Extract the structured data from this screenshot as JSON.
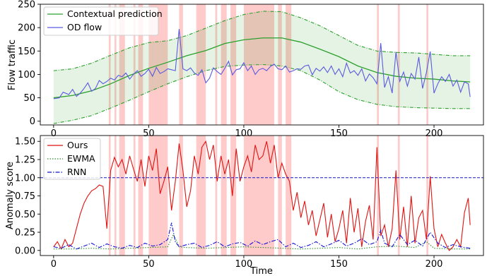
{
  "chart_data": [
    {
      "id": "top",
      "type": "line",
      "xlabel": "",
      "ylabel": "Flow traffic",
      "xlim": [
        -7,
        226
      ],
      "ylim": [
        -8,
        250
      ],
      "xticks": [
        "0",
        "50",
        "100",
        "150",
        "200"
      ],
      "yticks": [
        "0",
        "50",
        "100",
        "150",
        "200",
        "250"
      ],
      "grid": false,
      "legend_position": "top-left",
      "anomaly_bands": [
        [
          29,
          30
        ],
        [
          32,
          33
        ],
        [
          34.5,
          37.5
        ],
        [
          42,
          43
        ],
        [
          44.5,
          47
        ],
        [
          50,
          60
        ],
        [
          66,
          68
        ],
        [
          75,
          80
        ],
        [
          85,
          86
        ],
        [
          88,
          91
        ],
        [
          93,
          96
        ],
        [
          100,
          116
        ],
        [
          118,
          120
        ],
        [
          122,
          125
        ],
        [
          170,
          171
        ],
        [
          181,
          182
        ],
        [
          196,
          197
        ]
      ],
      "series": [
        {
          "name": "Contextual prediction",
          "color": "#2ca02c",
          "style": "band",
          "x": [
            0,
            10,
            20,
            30,
            40,
            50,
            60,
            70,
            80,
            90,
            100,
            110,
            120,
            130,
            140,
            150,
            160,
            170,
            180,
            190,
            200,
            210,
            219
          ],
          "upper": [
            108,
            112,
            124,
            141,
            157,
            168,
            172,
            183,
            199,
            215,
            228,
            235,
            234,
            221,
            204,
            183,
            162,
            150,
            147,
            146,
            143,
            140,
            140
          ],
          "center": [
            50,
            55,
            65,
            80,
            98,
            113,
            126,
            140,
            151,
            166,
            174,
            178,
            178,
            169,
            154,
            138,
            118,
            104,
            96,
            92,
            90,
            86,
            84
          ],
          "lower": [
            -5,
            2,
            12,
            28,
            45,
            63,
            80,
            95,
            108,
            117,
            120,
            121,
            118,
            108,
            88,
            63,
            46,
            36,
            31,
            29,
            28,
            27,
            27
          ]
        },
        {
          "name": "OD flow",
          "color": "#5a5ae0",
          "style": "line",
          "x": [
            0,
            3,
            5,
            8,
            10,
            12,
            14,
            16,
            18,
            20,
            22,
            24,
            26,
            28,
            30,
            32,
            34,
            36,
            38,
            40,
            42,
            44,
            46,
            48,
            50,
            52,
            54,
            56,
            58,
            60,
            62,
            64,
            66,
            68,
            70,
            72,
            74,
            76,
            78,
            80,
            82,
            84,
            86,
            88,
            90,
            92,
            94,
            96,
            98,
            100,
            102,
            104,
            106,
            108,
            110,
            112,
            114,
            116,
            118,
            120,
            122,
            124,
            126,
            128,
            130,
            132,
            134,
            136,
            138,
            140,
            142,
            144,
            146,
            148,
            150,
            152,
            154,
            156,
            158,
            160,
            162,
            164,
            166,
            168,
            170,
            172,
            174,
            176,
            178,
            180,
            182,
            184,
            186,
            188,
            190,
            192,
            194,
            196,
            198,
            200,
            202,
            204,
            206,
            208,
            210,
            212,
            214,
            216,
            218,
            219
          ],
          "values": [
            48,
            50,
            62,
            57,
            68,
            53,
            60,
            70,
            82,
            64,
            70,
            87,
            80,
            85,
            92,
            88,
            98,
            95,
            103,
            90,
            100,
            108,
            96,
            102,
            111,
            96,
            115,
            102,
            106,
            112,
            110,
            108,
            197,
            112,
            108,
            114,
            103,
            98,
            110,
            82,
            92,
            114,
            106,
            100,
            113,
            128,
            99,
            110,
            112,
            125,
            108,
            118,
            100,
            110,
            113,
            108,
            117,
            122,
            112,
            110,
            118,
            105,
            108,
            112,
            111,
            118,
            120,
            99,
            113,
            107,
            116,
            104,
            118,
            100,
            112,
            95,
            124,
            103,
            108,
            98,
            112,
            86,
            101,
            93,
            80,
            167,
            72,
            95,
            60,
            148,
            85,
            105,
            75,
            102,
            90,
            137,
            70,
            104,
            149,
            60,
            80,
            95,
            85,
            100,
            75,
            88,
            62,
            84,
            80,
            52
          ]
        }
      ]
    },
    {
      "id": "bottom",
      "type": "line",
      "xlabel": "Time",
      "ylabel": "Anomaly score",
      "xlim": [
        -7,
        226
      ],
      "ylim": [
        -0.07,
        1.58
      ],
      "xticks": [
        "0",
        "50",
        "100",
        "150",
        "200"
      ],
      "yticks": [
        "0.00",
        "0.25",
        "0.50",
        "0.75",
        "1.00",
        "1.25",
        "1.50"
      ],
      "threshold": 1.0,
      "grid": false,
      "legend_position": "top-left",
      "series": [
        {
          "name": "Ours",
          "color": "#e0120f",
          "style": "solid",
          "x": [
            0,
            2,
            4,
            6,
            8,
            10,
            12,
            14,
            16,
            18,
            20,
            22,
            24,
            26,
            28,
            30,
            32,
            34,
            36,
            38,
            40,
            42,
            44,
            46,
            48,
            50,
            52,
            54,
            56,
            58,
            60,
            62,
            64,
            66,
            68,
            70,
            72,
            74,
            76,
            78,
            80,
            82,
            84,
            86,
            88,
            90,
            92,
            94,
            96,
            98,
            100,
            102,
            104,
            106,
            108,
            110,
            112,
            114,
            116,
            118,
            120,
            122,
            124,
            126,
            128,
            130,
            132,
            134,
            136,
            138,
            140,
            142,
            144,
            146,
            148,
            150,
            152,
            154,
            156,
            158,
            160,
            162,
            164,
            166,
            168,
            170,
            172,
            174,
            176,
            178,
            180,
            182,
            184,
            186,
            188,
            190,
            192,
            194,
            196,
            198,
            200,
            202,
            204,
            206,
            208,
            210,
            212,
            214,
            216,
            218,
            219
          ],
          "values": [
            0.05,
            0.12,
            0.02,
            0.15,
            0.05,
            0.1,
            0.3,
            0.5,
            0.65,
            0.75,
            0.82,
            0.85,
            0.9,
            0.88,
            0.3,
            1.1,
            1.28,
            1.15,
            1.25,
            1.05,
            1.3,
            1.12,
            0.95,
            1.25,
            0.88,
            1.3,
            1.1,
            1.4,
            0.78,
            0.95,
            1.15,
            0.55,
            0.95,
            1.47,
            1.1,
            0.6,
            0.82,
            1.3,
            1.05,
            1.42,
            1.5,
            1.25,
            1.45,
            0.95,
            1.3,
            1.05,
            1.25,
            0.75,
            1.4,
            0.95,
            1.15,
            1.3,
            1.08,
            1.45,
            1.25,
            1.3,
            1.5,
            1.2,
            1.45,
            1.0,
            1.2,
            1.05,
            0.95,
            0.55,
            0.8,
            0.45,
            0.68,
            0.35,
            0.55,
            0.2,
            0.42,
            0.65,
            0.18,
            0.5,
            0.12,
            0.3,
            0.55,
            0.1,
            0.72,
            0.25,
            0.58,
            0.05,
            0.4,
            0.62,
            0.15,
            1.42,
            0.2,
            0.35,
            0.05,
            0.3,
            1.1,
            0.15,
            0.6,
            0.05,
            0.75,
            0.1,
            0.45,
            0.55,
            0.15,
            1.02,
            0.3,
            0.05,
            0.22,
            0.1,
            0.0,
            0.05,
            0.15,
            0.05,
            0.52,
            0.72,
            0.35
          ]
        },
        {
          "name": "EWMA",
          "color": "#2e8b2e",
          "style": "dotted",
          "x": [
            0,
            10,
            20,
            30,
            40,
            50,
            60,
            63,
            66,
            70,
            80,
            90,
            100,
            110,
            120,
            130,
            140,
            150,
            160,
            170,
            180,
            190,
            196,
            200,
            210,
            219
          ],
          "values": [
            0.02,
            0.02,
            0.03,
            0.02,
            0.03,
            0.04,
            0.05,
            0.22,
            0.05,
            0.04,
            0.03,
            0.04,
            0.05,
            0.04,
            0.03,
            0.02,
            0.03,
            0.04,
            0.02,
            0.05,
            0.06,
            0.04,
            0.12,
            0.03,
            0.02,
            0.02
          ]
        },
        {
          "name": "RNN",
          "color": "#1515d0",
          "style": "dashdot",
          "x": [
            0,
            4,
            8,
            12,
            16,
            20,
            24,
            28,
            32,
            36,
            40,
            44,
            48,
            52,
            56,
            60,
            62,
            64,
            66,
            70,
            74,
            78,
            82,
            86,
            90,
            94,
            98,
            102,
            106,
            110,
            114,
            118,
            122,
            126,
            130,
            134,
            138,
            142,
            146,
            150,
            154,
            158,
            162,
            166,
            170,
            172,
            174,
            178,
            182,
            186,
            190,
            194,
            198,
            202,
            206,
            210,
            214,
            219
          ],
          "values": [
            0.05,
            0.03,
            0.08,
            0.02,
            0.06,
            0.1,
            0.04,
            0.09,
            0.05,
            0.03,
            0.07,
            0.04,
            0.1,
            0.06,
            0.08,
            0.15,
            0.38,
            0.12,
            0.05,
            0.08,
            0.1,
            0.04,
            0.07,
            0.12,
            0.05,
            0.09,
            0.11,
            0.06,
            0.13,
            0.08,
            0.12,
            0.15,
            0.05,
            0.1,
            0.04,
            0.07,
            0.12,
            0.05,
            0.09,
            0.14,
            0.06,
            0.1,
            0.16,
            0.08,
            0.12,
            0.28,
            0.1,
            0.05,
            0.22,
            0.08,
            0.14,
            0.06,
            0.25,
            0.1,
            0.04,
            0.08,
            0.05,
            0.03
          ]
        }
      ]
    }
  ]
}
